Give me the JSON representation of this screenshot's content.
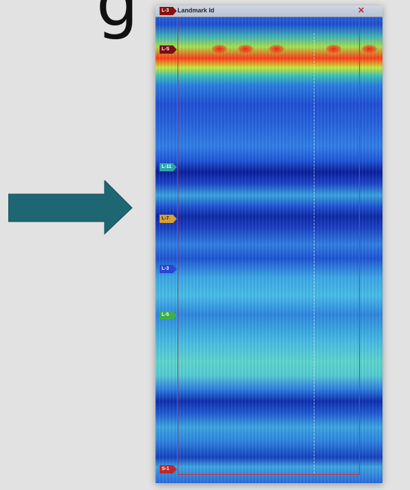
{
  "header": {
    "partial_glyph": "g"
  },
  "window": {
    "title": "Landmark Id",
    "close_glyph": "✕"
  },
  "tags": {
    "top": "L-3",
    "s": "L-S",
    "l11": "L-11",
    "l7": "L-7",
    "l3": "L-3",
    "l5": "L-5",
    "s1": "S-1"
  },
  "colors": {
    "arrow": "#1f6673",
    "selection_border": "#e4262c",
    "background": "#e2e2e2"
  },
  "icons": {
    "arrow": "right-arrow-icon"
  }
}
